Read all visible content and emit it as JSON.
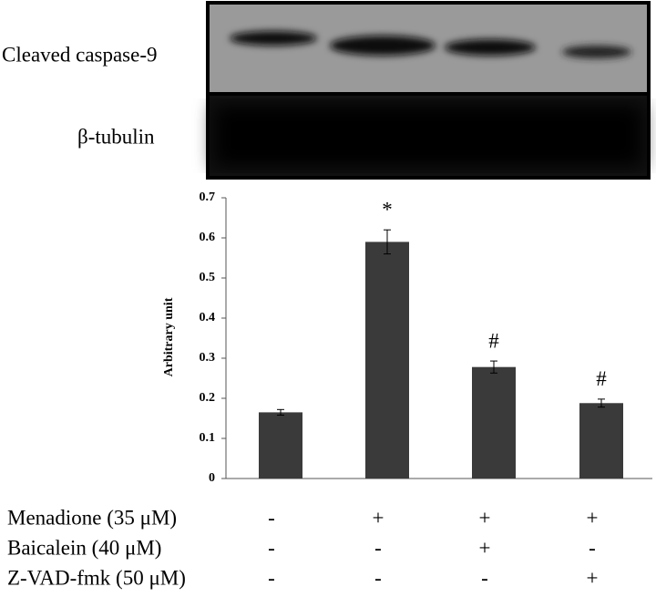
{
  "blot_labels": [
    "Cleaved caspase-9",
    "β-tubulin"
  ],
  "chart_data": {
    "type": "bar",
    "y_label": "Arbitrary unit",
    "values": [
      0.165,
      0.59,
      0.278,
      0.188
    ],
    "errors": [
      0.007,
      0.03,
      0.015,
      0.01
    ],
    "annotations": [
      null,
      "*",
      "#",
      "#"
    ],
    "color": "#3a3a3a",
    "ylim": [
      0,
      0.7
    ],
    "yticks": [
      0,
      0.1,
      0.2,
      0.3,
      0.4,
      0.5,
      0.6,
      0.7
    ],
    "treatments": [
      {
        "label": "Menadione (35 μM)",
        "signs": [
          "-",
          "+",
          "+",
          "+"
        ]
      },
      {
        "label": "Baicalein (40 μM)",
        "signs": [
          "-",
          "-",
          "+",
          "-"
        ]
      },
      {
        "label": "Z-VAD-fmk (50 μM)",
        "signs": [
          "-",
          "-",
          "-",
          "+"
        ]
      }
    ]
  }
}
